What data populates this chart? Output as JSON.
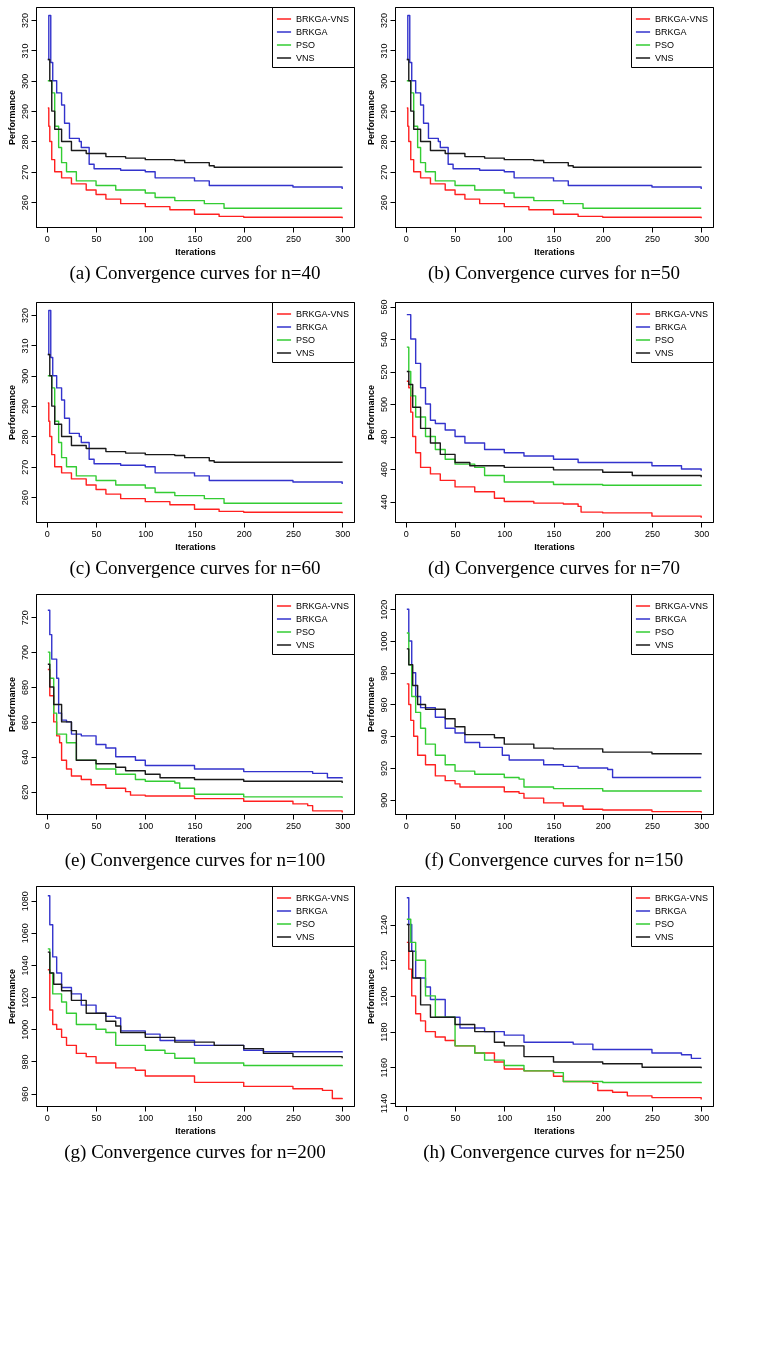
{
  "chart_data": [
    {
      "type": "step",
      "title": "(a) Convergence curves for n=40",
      "xlabel": "Iterations",
      "ylabel": "Performance",
      "xlim": [
        -11,
        312
      ],
      "xticks": [
        0,
        50,
        100,
        150,
        200,
        250,
        300
      ],
      "ylim": [
        251.8,
        324.3
      ],
      "yticks": [
        260,
        270,
        280,
        290,
        300,
        310,
        320
      ],
      "legend": "top right",
      "grid": false,
      "series": [
        {
          "name": "BRKGA-VNS",
          "color": "#ff2020",
          "x": [
            1,
            2,
            3,
            5,
            8,
            15,
            25,
            40,
            50,
            60,
            75,
            100,
            125,
            150,
            175,
            200,
            260,
            300
          ],
          "values": [
            291,
            285,
            280,
            274,
            270,
            268,
            266,
            264,
            262.5,
            261,
            259.5,
            258.5,
            257.5,
            256,
            255.3,
            255,
            255,
            254.7
          ]
        },
        {
          "name": "BRKGA",
          "color": "#3333cc",
          "x": [
            1,
            2,
            4,
            6,
            10,
            15,
            18,
            23,
            33,
            35,
            42,
            43,
            48,
            75,
            100,
            110,
            140,
            150,
            165,
            250,
            300
          ],
          "values": [
            307,
            321.5,
            306,
            300,
            296,
            292,
            286,
            281,
            280,
            278,
            278,
            272.5,
            271,
            270.5,
            270,
            268,
            268,
            267,
            265.5,
            265,
            264.3
          ]
        },
        {
          "name": "PSO",
          "color": "#33cc33",
          "x": [
            1,
            5,
            8,
            12,
            15,
            20,
            30,
            50,
            70,
            100,
            110,
            130,
            160,
            180,
            300
          ],
          "values": [
            300,
            296,
            285,
            278,
            273,
            270,
            267,
            265.5,
            264,
            263,
            261.5,
            260.5,
            259.5,
            258,
            258
          ]
        },
        {
          "name": "VNS",
          "color": "#1a1a1a",
          "x": [
            1,
            3,
            5,
            8,
            15,
            25,
            40,
            60,
            80,
            100,
            130,
            140,
            165,
            170,
            300
          ],
          "values": [
            307,
            300,
            290,
            284,
            280,
            277,
            276,
            275,
            274.5,
            274,
            273.7,
            273,
            272,
            271.5,
            271.3
          ]
        }
      ]
    },
    {
      "type": "step",
      "title": "(b) Convergence curves for n=50",
      "xlabel": "Iterations",
      "ylabel": "Performance",
      "xlim": [
        -11,
        312
      ],
      "xticks": [
        0,
        50,
        100,
        150,
        200,
        250,
        300
      ],
      "ylim": [
        251.8,
        324.3
      ],
      "yticks": [
        260,
        270,
        280,
        290,
        300,
        310,
        320
      ],
      "legend": "top right",
      "grid": false,
      "series": [
        {
          "name": "BRKGA-VNS",
          "color": "#ff2020",
          "x": [
            1,
            2,
            3,
            5,
            8,
            15,
            25,
            40,
            50,
            60,
            75,
            100,
            125,
            150,
            175,
            200,
            260,
            300
          ],
          "values": [
            291,
            285,
            280,
            274,
            270,
            268,
            266,
            264,
            262.5,
            261,
            259.5,
            258.5,
            257.5,
            256,
            255.3,
            255,
            255,
            254.7
          ]
        },
        {
          "name": "BRKGA",
          "color": "#3333cc",
          "x": [
            1,
            2,
            4,
            6,
            10,
            15,
            18,
            23,
            33,
            35,
            42,
            43,
            48,
            75,
            100,
            110,
            140,
            150,
            165,
            250,
            300
          ],
          "values": [
            307,
            321.5,
            306,
            300,
            296,
            292,
            286,
            281,
            280,
            278,
            278,
            272.5,
            271,
            270.5,
            270,
            268,
            268,
            267,
            265.5,
            265,
            264.3
          ]
        },
        {
          "name": "PSO",
          "color": "#33cc33",
          "x": [
            1,
            5,
            8,
            12,
            15,
            20,
            30,
            50,
            70,
            100,
            110,
            130,
            160,
            180,
            300
          ],
          "values": [
            300,
            296,
            285,
            278,
            273,
            270,
            267,
            265.5,
            264,
            263,
            261.5,
            260.5,
            259.5,
            258,
            258
          ]
        },
        {
          "name": "VNS",
          "color": "#1a1a1a",
          "x": [
            1,
            3,
            5,
            8,
            15,
            25,
            40,
            60,
            80,
            100,
            130,
            140,
            165,
            170,
            300
          ],
          "values": [
            307,
            300,
            290,
            284,
            280,
            277,
            276,
            275,
            274.5,
            274,
            273.7,
            273,
            272,
            271.5,
            271.3
          ]
        }
      ]
    },
    {
      "type": "step",
      "title": "(c) Convergence curves for n=60",
      "xlabel": "Iterations",
      "ylabel": "Performance",
      "xlim": [
        -11,
        312
      ],
      "xticks": [
        0,
        50,
        100,
        150,
        200,
        250,
        300
      ],
      "ylim": [
        251.8,
        324.3
      ],
      "yticks": [
        260,
        270,
        280,
        290,
        300,
        310,
        320
      ],
      "legend": "top right",
      "grid": false,
      "series": [
        {
          "name": "BRKGA-VNS",
          "color": "#ff2020",
          "x": [
            1,
            2,
            3,
            5,
            8,
            15,
            25,
            40,
            50,
            60,
            75,
            100,
            125,
            150,
            175,
            200,
            260,
            300
          ],
          "values": [
            291,
            285,
            280,
            274,
            270,
            268,
            266,
            264,
            262.5,
            261,
            259.5,
            258.5,
            257.5,
            256,
            255.3,
            255,
            255,
            254.7
          ]
        },
        {
          "name": "BRKGA",
          "color": "#3333cc",
          "x": [
            1,
            2,
            4,
            6,
            10,
            15,
            18,
            23,
            33,
            35,
            42,
            43,
            48,
            75,
            100,
            110,
            140,
            150,
            165,
            250,
            300
          ],
          "values": [
            307,
            321.5,
            306,
            300,
            296,
            292,
            286,
            281,
            280,
            278,
            278,
            272.5,
            271,
            270.5,
            270,
            268,
            268,
            267,
            265.5,
            265,
            264.3
          ]
        },
        {
          "name": "PSO",
          "color": "#33cc33",
          "x": [
            1,
            5,
            8,
            12,
            15,
            20,
            30,
            50,
            70,
            100,
            110,
            130,
            160,
            180,
            300
          ],
          "values": [
            300,
            296,
            285,
            278,
            273,
            270,
            267,
            265.5,
            264,
            263,
            261.5,
            260.5,
            259.5,
            258,
            258
          ]
        },
        {
          "name": "VNS",
          "color": "#1a1a1a",
          "x": [
            1,
            3,
            5,
            8,
            15,
            25,
            40,
            60,
            80,
            100,
            130,
            140,
            165,
            170,
            300
          ],
          "values": [
            307,
            300,
            290,
            284,
            280,
            277,
            276,
            275,
            274.5,
            274,
            273.7,
            273,
            272,
            271.5,
            271.3
          ]
        }
      ]
    },
    {
      "type": "step",
      "title": "(d) Convergence curves for n=70",
      "xlabel": "Iterations",
      "ylabel": "Performance",
      "xlim": [
        -11,
        312
      ],
      "xticks": [
        0,
        50,
        100,
        150,
        200,
        250,
        300
      ],
      "ylim": [
        427.4,
        562.8
      ],
      "yticks": [
        440,
        460,
        480,
        500,
        520,
        540,
        560
      ],
      "legend": "top right",
      "grid": false,
      "series": [
        {
          "name": "BRKGA-VNS",
          "color": "#ff2020",
          "x": [
            1,
            3,
            5,
            7,
            10,
            15,
            25,
            35,
            50,
            70,
            90,
            100,
            130,
            160,
            175,
            178,
            200,
            250,
            300
          ],
          "values": [
            514,
            510,
            495,
            480,
            470,
            461,
            457,
            453,
            449,
            446,
            442,
            440,
            439,
            438.5,
            437,
            433.5,
            433,
            431,
            430
          ]
        },
        {
          "name": "BRKGA",
          "color": "#3333cc",
          "x": [
            1,
            5,
            10,
            15,
            20,
            25,
            30,
            40,
            50,
            60,
            80,
            100,
            120,
            150,
            175,
            200,
            250,
            280,
            300
          ],
          "values": [
            555,
            540,
            525,
            510,
            500,
            490,
            488,
            484,
            480,
            476,
            472,
            470,
            468,
            466,
            464,
            464,
            462,
            460,
            459
          ]
        },
        {
          "name": "PSO",
          "color": "#33cc33",
          "x": [
            1,
            3,
            5,
            10,
            20,
            30,
            40,
            50,
            70,
            80,
            100,
            150,
            200,
            300
          ],
          "values": [
            535,
            520,
            505,
            492,
            480,
            472,
            466,
            463,
            461,
            456,
            452,
            450.5,
            450,
            449.7
          ]
        },
        {
          "name": "VNS",
          "color": "#1a1a1a",
          "x": [
            1,
            3,
            7,
            15,
            25,
            35,
            50,
            65,
            100,
            150,
            200,
            230,
            300
          ],
          "values": [
            520,
            512,
            498,
            485,
            476,
            469,
            464,
            462,
            461,
            459.5,
            458,
            456,
            455
          ]
        }
      ]
    },
    {
      "type": "step",
      "title": "(e) Convergence curves for n=100",
      "xlabel": "Iterations",
      "ylabel": "Performance",
      "xlim": [
        -11,
        312
      ],
      "xticks": [
        0,
        50,
        100,
        150,
        200,
        250,
        300
      ],
      "ylim": [
        607.2,
        733.3
      ],
      "yticks": [
        620,
        640,
        660,
        680,
        700,
        720
      ],
      "legend": "top right",
      "grid": false,
      "series": [
        {
          "name": "BRKGA-VNS",
          "color": "#ff2020",
          "x": [
            1,
            3,
            7,
            10,
            13,
            15,
            20,
            25,
            35,
            45,
            60,
            80,
            85,
            100,
            150,
            200,
            250,
            265,
            270,
            300
          ],
          "values": [
            690,
            675,
            660,
            652,
            648,
            638,
            633,
            629,
            627,
            624,
            622,
            620,
            618,
            617.5,
            616,
            614.5,
            613,
            612,
            609,
            608
          ]
        },
        {
          "name": "BRKGA",
          "color": "#3333cc",
          "x": [
            1,
            3,
            5,
            10,
            12,
            15,
            20,
            25,
            35,
            50,
            60,
            70,
            90,
            100,
            150,
            200,
            270,
            285,
            300
          ],
          "values": [
            724,
            710,
            696,
            685,
            665,
            661,
            660,
            653,
            652,
            647,
            645,
            640,
            638,
            635,
            633,
            631.5,
            630.5,
            628,
            627.5
          ]
        },
        {
          "name": "PSO",
          "color": "#33cc33",
          "x": [
            1,
            3,
            7,
            10,
            20,
            30,
            50,
            70,
            90,
            100,
            130,
            135,
            150,
            200,
            300
          ],
          "values": [
            700,
            685,
            665,
            653,
            648,
            638,
            633,
            630,
            627,
            626,
            625,
            622,
            618.5,
            617,
            616.5
          ]
        },
        {
          "name": "VNS",
          "color": "#1a1a1a",
          "x": [
            1,
            3,
            7,
            15,
            25,
            30,
            50,
            70,
            80,
            100,
            115,
            150,
            200,
            300
          ],
          "values": [
            693,
            680,
            670,
            660,
            655,
            638,
            636,
            634,
            632,
            630,
            628,
            627,
            626,
            625
          ]
        }
      ]
    },
    {
      "type": "step",
      "title": "(f) Convergence curves for n=150",
      "xlabel": "Iterations",
      "ylabel": "Performance",
      "xlim": [
        -11,
        312
      ],
      "xticks": [
        0,
        50,
        100,
        150,
        200,
        250,
        300
      ],
      "ylim": [
        891.0,
        1029.6
      ],
      "yticks": [
        900,
        920,
        940,
        960,
        980,
        1000,
        1020
      ],
      "legend": "top right",
      "grid": false,
      "series": [
        {
          "name": "BRKGA-VNS",
          "color": "#ff2020",
          "x": [
            1,
            3,
            5,
            8,
            12,
            20,
            30,
            40,
            50,
            55,
            100,
            115,
            120,
            140,
            160,
            180,
            200,
            250,
            300
          ],
          "values": [
            973,
            960,
            950,
            940,
            928,
            922,
            915,
            912,
            910,
            908,
            905,
            904,
            901,
            898,
            896,
            894,
            893.5,
            892.5,
            891.8
          ]
        },
        {
          "name": "BRKGA",
          "color": "#3333cc",
          "x": [
            1,
            3,
            6,
            10,
            15,
            30,
            40,
            50,
            60,
            75,
            95,
            98,
            105,
            130,
            140,
            160,
            175,
            205,
            210,
            300
          ],
          "values": [
            1020,
            1000,
            980,
            965,
            958,
            952,
            945,
            942,
            936,
            933,
            933,
            928,
            925,
            925,
            922,
            921,
            920,
            919,
            914,
            914
          ]
        },
        {
          "name": "PSO",
          "color": "#33cc33",
          "x": [
            1,
            3,
            6,
            10,
            15,
            20,
            30,
            40,
            50,
            70,
            100,
            115,
            120,
            150,
            200,
            300
          ],
          "values": [
            1005,
            985,
            965,
            955,
            945,
            935,
            928,
            922,
            918,
            916,
            914,
            913,
            908,
            907,
            905.5,
            905
          ]
        },
        {
          "name": "VNS",
          "color": "#1a1a1a",
          "x": [
            1,
            3,
            7,
            12,
            20,
            40,
            50,
            60,
            90,
            100,
            130,
            150,
            200,
            250,
            300
          ],
          "values": [
            995,
            985,
            972,
            960,
            957,
            951,
            946,
            941,
            939,
            935,
            932.5,
            932,
            930,
            929,
            928.5
          ]
        }
      ]
    },
    {
      "type": "step",
      "title": "(g) Convergence curves for n=200",
      "xlabel": "Iterations",
      "ylabel": "Performance",
      "xlim": [
        -11,
        312
      ],
      "xticks": [
        0,
        50,
        100,
        150,
        200,
        250,
        300
      ],
      "ylim": [
        952.3,
        1089.1
      ],
      "yticks": [
        960,
        980,
        1000,
        1020,
        1040,
        1060,
        1080
      ],
      "legend": "top right",
      "grid": false,
      "series": [
        {
          "name": "BRKGA-VNS",
          "color": "#ff2020",
          "x": [
            1,
            3,
            6,
            10,
            15,
            20,
            30,
            40,
            50,
            70,
            90,
            100,
            150,
            200,
            250,
            280,
            290,
            300
          ],
          "values": [
            1037,
            1012,
            1003,
            1000,
            995,
            990,
            985,
            983,
            979,
            976,
            974.5,
            971,
            967,
            964.5,
            963,
            962,
            957,
            956.5
          ]
        },
        {
          "name": "BRKGA",
          "color": "#3333cc",
          "x": [
            1,
            3,
            6,
            10,
            15,
            25,
            35,
            50,
            60,
            70,
            75,
            100,
            115,
            150,
            200,
            220,
            300
          ],
          "values": [
            1083,
            1065,
            1045,
            1035,
            1026,
            1022,
            1015,
            1010,
            1008,
            1007,
            999,
            997,
            993,
            990,
            987,
            986,
            985.5
          ]
        },
        {
          "name": "PSO",
          "color": "#33cc33",
          "x": [
            1,
            3,
            6,
            15,
            20,
            30,
            50,
            60,
            70,
            100,
            120,
            130,
            150,
            200,
            300
          ],
          "values": [
            1050,
            1035,
            1022,
            1017,
            1010,
            1003,
            1000,
            998,
            990,
            987,
            985,
            982,
            979,
            977.5,
            977
          ]
        },
        {
          "name": "VNS",
          "color": "#1a1a1a",
          "x": [
            1,
            3,
            7,
            15,
            25,
            40,
            60,
            70,
            75,
            100,
            130,
            170,
            200,
            220,
            250,
            300
          ],
          "values": [
            1048,
            1035,
            1028,
            1024,
            1018,
            1010,
            1005,
            1002,
            998,
            995,
            992,
            990,
            988,
            985,
            983,
            982
          ]
        }
      ]
    },
    {
      "type": "step",
      "title": "(h) Convergence curves for n=250",
      "xlabel": "Iterations",
      "ylabel": "Performance",
      "xlim": [
        -11,
        312
      ],
      "xticks": [
        0,
        50,
        100,
        150,
        200,
        250,
        300
      ],
      "ylim": [
        1138.3,
        1261.6
      ],
      "yticks": [
        1140,
        1160,
        1180,
        1200,
        1220,
        1240
      ],
      "legend": "top right",
      "grid": false,
      "series": [
        {
          "name": "BRKGA-VNS",
          "color": "#ff2020",
          "x": [
            1,
            3,
            6,
            10,
            15,
            20,
            30,
            40,
            50,
            70,
            90,
            100,
            120,
            150,
            160,
            190,
            195,
            210,
            225,
            250,
            300
          ],
          "values": [
            1230,
            1215,
            1200,
            1190,
            1186,
            1180,
            1177,
            1175,
            1172,
            1168,
            1163,
            1159,
            1158,
            1155,
            1152,
            1151,
            1147,
            1146,
            1144,
            1143,
            1142
          ]
        },
        {
          "name": "BRKGA",
          "color": "#3333cc",
          "x": [
            1,
            3,
            6,
            10,
            20,
            25,
            40,
            55,
            80,
            100,
            120,
            170,
            190,
            250,
            280,
            290,
            300
          ],
          "values": [
            1255,
            1240,
            1225,
            1210,
            1205,
            1198,
            1188,
            1182,
            1180,
            1178,
            1174,
            1173,
            1170,
            1168,
            1167,
            1165,
            1165
          ]
        },
        {
          "name": "PSO",
          "color": "#33cc33",
          "x": [
            1,
            5,
            10,
            20,
            30,
            50,
            70,
            80,
            100,
            120,
            150,
            160,
            200,
            300
          ],
          "values": [
            1243,
            1230,
            1220,
            1200,
            1188,
            1172,
            1168,
            1164,
            1161,
            1158,
            1157,
            1152,
            1151.5,
            1151
          ]
        },
        {
          "name": "VNS",
          "color": "#1a1a1a",
          "x": [
            1,
            3,
            7,
            15,
            25,
            50,
            70,
            90,
            100,
            120,
            150,
            200,
            240,
            300
          ],
          "values": [
            1240,
            1225,
            1210,
            1195,
            1188,
            1184,
            1180,
            1174,
            1172,
            1166,
            1163,
            1162,
            1160,
            1159.5
          ]
        }
      ]
    }
  ]
}
